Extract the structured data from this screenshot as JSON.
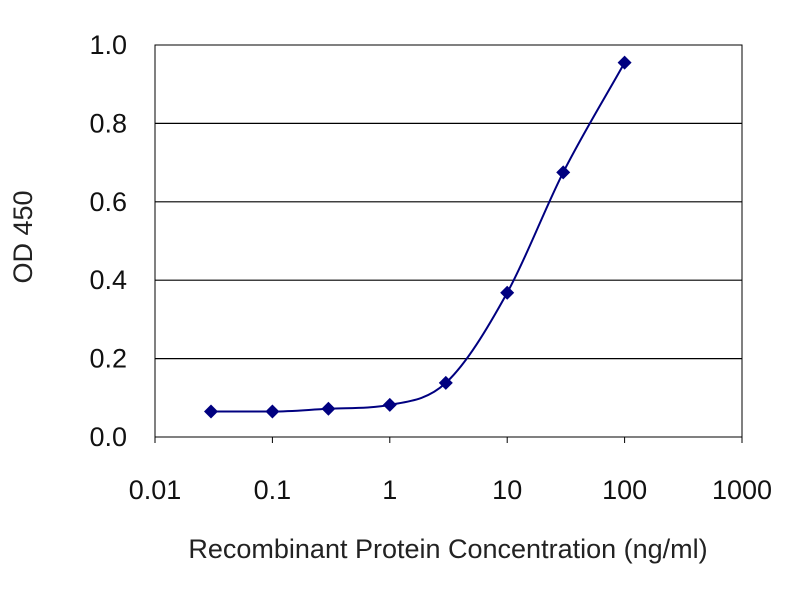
{
  "chart_data": {
    "type": "line",
    "title": "",
    "xlabel": "Recombinant Protein Concentration (ng/ml)",
    "ylabel": "OD 450",
    "xscale": "log",
    "xlim": [
      0.01,
      1000
    ],
    "ylim": [
      0.0,
      1.0
    ],
    "x_ticks": [
      "0.01",
      "0.1",
      "1",
      "10",
      "100",
      "1000"
    ],
    "y_ticks": [
      "0.0",
      "0.2",
      "0.4",
      "0.6",
      "0.8",
      "1.0"
    ],
    "grid": "horizontal",
    "legend": "none",
    "series": [
      {
        "x": [
          0.03,
          0.1,
          0.3,
          1,
          3,
          10,
          30,
          100
        ],
        "y": [
          0.065,
          0.065,
          0.072,
          0.082,
          0.138,
          0.368,
          0.675,
          0.955
        ],
        "marker": "diamond",
        "fit_curve": true
      }
    ],
    "colors": {
      "series": "#000080",
      "grid": "#000000",
      "frame": "#000000"
    }
  }
}
